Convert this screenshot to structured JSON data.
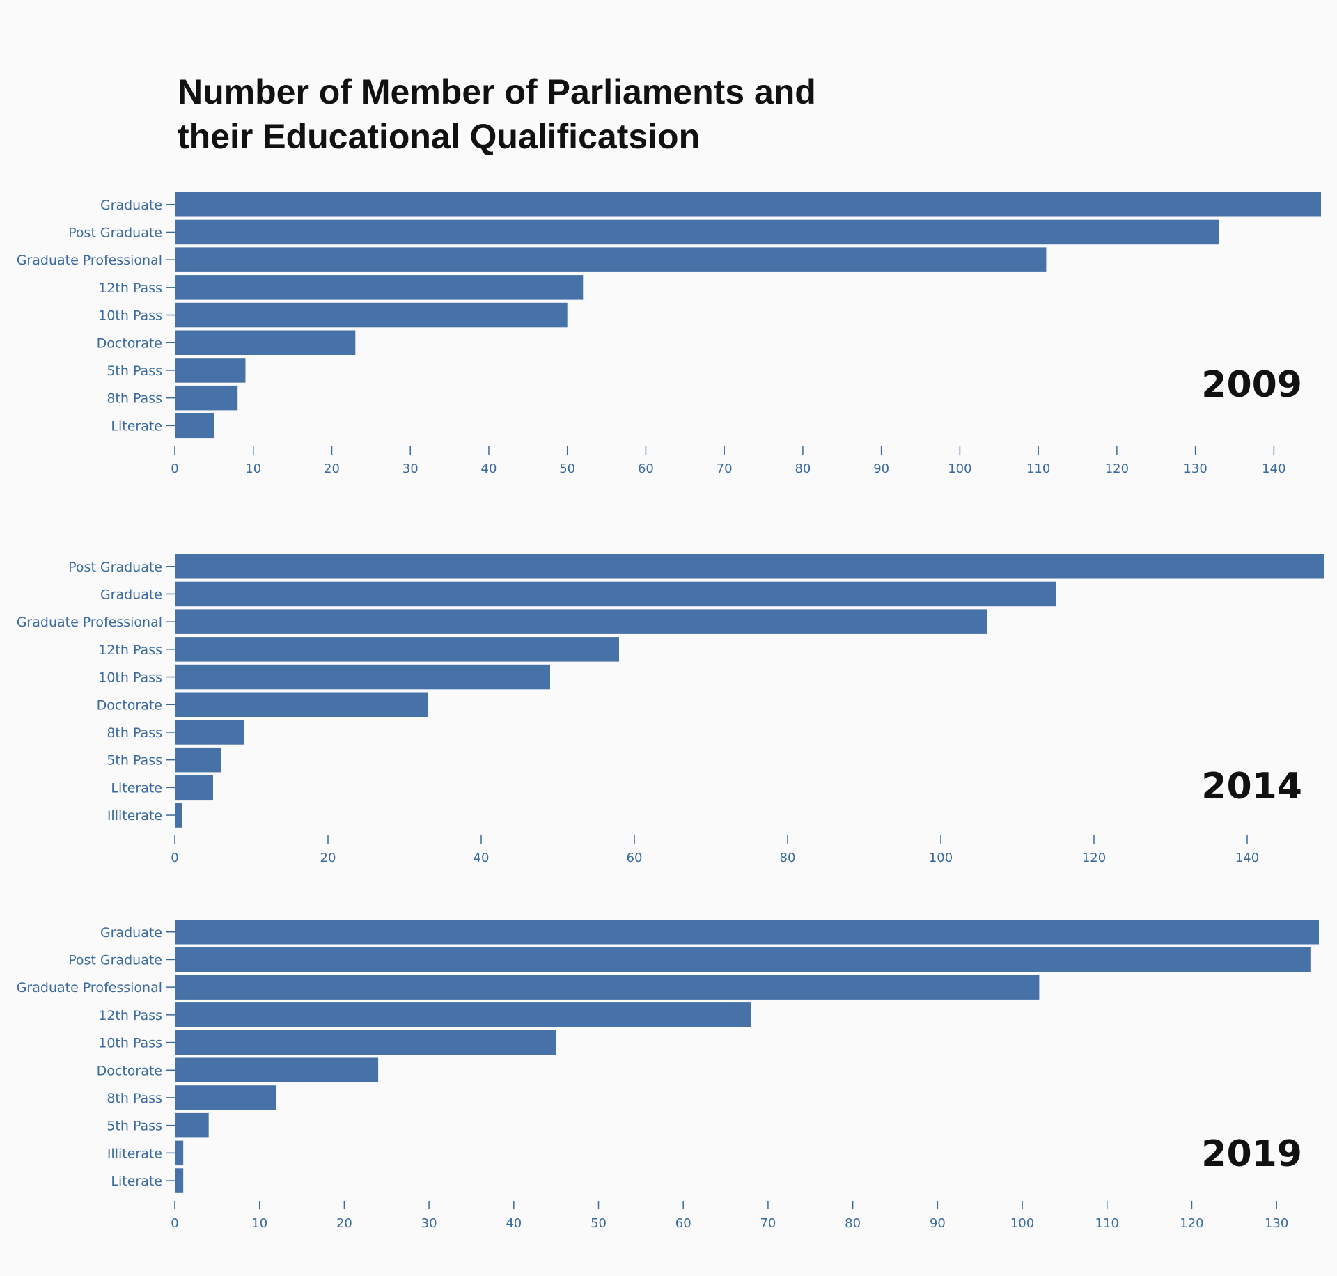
{
  "title_lines": [
    "Number of Member of Parliaments and",
    "their Educational Qualificatsion"
  ],
  "bar_color": "#4672a8",
  "chart_data": [
    {
      "type": "bar",
      "orientation": "horizontal",
      "label": "2009",
      "categories": [
        "Graduate",
        "Post Graduate",
        "Graduate Professional",
        "12th Pass",
        "10th Pass",
        "Doctorate",
        "5th Pass",
        "8th Pass",
        "Literate"
      ],
      "values": [
        146,
        133,
        111,
        52,
        50,
        23,
        9,
        8,
        5
      ],
      "xlim": [
        0,
        146
      ],
      "xticks": [
        0,
        10,
        20,
        30,
        40,
        50,
        60,
        70,
        80,
        90,
        100,
        110,
        120,
        130,
        140
      ],
      "grid": false
    },
    {
      "type": "bar",
      "orientation": "horizontal",
      "label": "2014",
      "categories": [
        "Post Graduate",
        "Graduate",
        "Graduate Professional",
        "12th Pass",
        "10th Pass",
        "Doctorate",
        "8th Pass",
        "5th Pass",
        "Literate",
        "Illiterate"
      ],
      "values": [
        150,
        115,
        106,
        58,
        49,
        33,
        9,
        6,
        5,
        1
      ],
      "xlim": [
        0,
        150
      ],
      "xticks": [
        0,
        20,
        40,
        60,
        80,
        100,
        120,
        140
      ],
      "grid": false
    },
    {
      "type": "bar",
      "orientation": "horizontal",
      "label": "2019",
      "categories": [
        "Graduate",
        "Post Graduate",
        "Graduate Professional",
        "12th Pass",
        "10th Pass",
        "Doctorate",
        "8th Pass",
        "5th Pass",
        "Illiterate",
        "Literate"
      ],
      "values": [
        135,
        134,
        102,
        68,
        45,
        24,
        12,
        4,
        1,
        1
      ],
      "xlim": [
        0,
        135
      ],
      "xticks": [
        0,
        10,
        20,
        30,
        40,
        50,
        60,
        70,
        80,
        90,
        100,
        110,
        120,
        130
      ],
      "grid": false
    }
  ]
}
